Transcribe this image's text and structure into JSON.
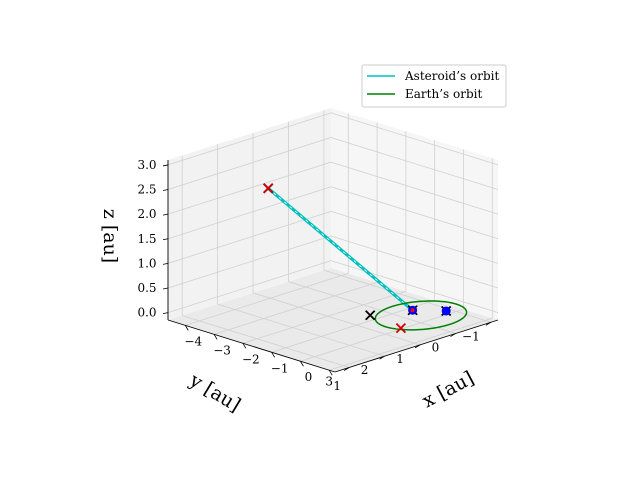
{
  "chart_data": {
    "type": "line",
    "projection": "3d",
    "title": "",
    "xlabel": "x [au]",
    "ylabel": "y [au]",
    "zlabel": "z [au]",
    "xlim": [
      -4.6,
      1.2
    ],
    "ylim": [
      -1.2,
      3.4
    ],
    "zlim": [
      -0.15,
      3.1
    ],
    "x_ticks": [
      "−4",
      "−3",
      "−2",
      "−1",
      "0",
      "1"
    ],
    "y_ticks": [
      "−1",
      "0",
      "1",
      "2",
      "3"
    ],
    "z_ticks": [
      "0.0",
      "0.5",
      "1.0",
      "1.5",
      "2.0",
      "2.5",
      "3.0"
    ],
    "grid": true,
    "legend_position": "upper-right",
    "legend": [
      {
        "label": "Asteroid’s orbit",
        "color": "#00bfbf"
      },
      {
        "label": "Earth’s orbit",
        "color": "#008000"
      }
    ],
    "series": [
      {
        "name": "Asteroid’s orbit",
        "color": "#00bfbf",
        "points": [
          [
            -1.55,
            3.05,
            3.0
          ],
          [
            -0.35,
            -0.05,
            0.03
          ]
        ]
      },
      {
        "name": "Earth’s orbit",
        "color": "#008000",
        "circle": {
          "center": [
            0,
            0,
            0
          ],
          "radius": 1
        }
      }
    ],
    "markers": [
      {
        "shape": "x",
        "color": "#000000",
        "points": [
          [
            -1.55,
            3.05,
            3.0
          ],
          [
            -0.35,
            -0.05,
            0.03
          ],
          [
            0.2,
            -0.55,
            0
          ],
          [
            -0.9,
            0.7,
            0
          ]
        ]
      },
      {
        "shape": "x",
        "color": "#cc0000",
        "points": [
          [
            -1.55,
            3.05,
            3.0
          ],
          [
            0.35,
            0.85,
            0
          ]
        ]
      },
      {
        "shape": "dot",
        "color": "#0000ff",
        "points": [
          [
            -0.35,
            -0.05,
            0.03
          ],
          [
            0.2,
            -0.55,
            0
          ]
        ]
      },
      {
        "shape": "dot",
        "color": "#ff0000",
        "points": [
          [
            -0.35,
            -0.05,
            0.03
          ]
        ]
      }
    ]
  }
}
